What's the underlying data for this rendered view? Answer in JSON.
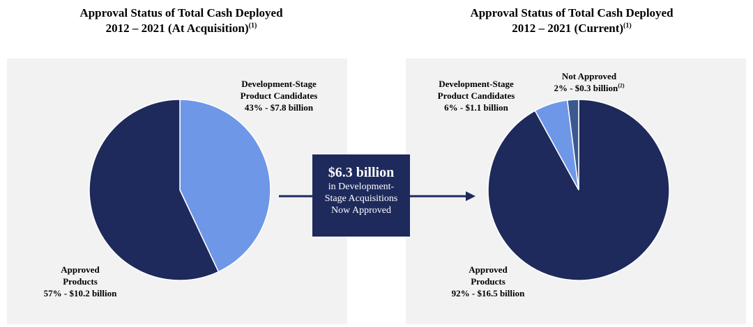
{
  "titles": {
    "left": {
      "line1": "Approval Status of Total Cash Deployed",
      "line2": "2012 – 2021 (At Acquisition)",
      "note": "(1)"
    },
    "right": {
      "line1": "Approval Status of Total Cash Deployed",
      "line2": "2012 – 2021 (Current)",
      "note": "(1)"
    }
  },
  "callout": {
    "headline": "$6.3 billion",
    "line1": "in Development-",
    "line2": "Stage Acquisitions",
    "line3": "Now Approved"
  },
  "colors": {
    "approved": "#1e2a5c",
    "development": "#6f97e8",
    "not_approved": "#3c5891",
    "panel": "#f2f2f2"
  },
  "chart_data": [
    {
      "type": "pie",
      "title": "Approval Status of Total Cash Deployed 2012 – 2021 (At Acquisition)",
      "slices": [
        {
          "key": "development",
          "label_line1": "Development-Stage",
          "label_line2": "Product Candidates",
          "value_label": "43% - $7.8 billion",
          "percent": 43,
          "value": 7.8
        },
        {
          "key": "approved",
          "label_line1": "Approved",
          "label_line2": "Products",
          "value_label": "57% - $10.2 billion",
          "percent": 57,
          "value": 10.2
        }
      ]
    },
    {
      "type": "pie",
      "title": "Approval Status of Total Cash Deployed 2012 – 2021 (Current)",
      "slices": [
        {
          "key": "approved",
          "label_line1": "Approved",
          "label_line2": "Products",
          "value_label": "92% - $16.5 billion",
          "percent": 92,
          "value": 16.5
        },
        {
          "key": "development",
          "label_line1": "Development-Stage",
          "label_line2": "Product Candidates",
          "value_label": "6% - $1.1 billion",
          "percent": 6,
          "value": 1.1
        },
        {
          "key": "not_approved",
          "label_line1": "Not Approved",
          "value_label": "2% - $0.3 billion",
          "note": "(2)",
          "percent": 2,
          "value": 0.3
        }
      ]
    }
  ]
}
